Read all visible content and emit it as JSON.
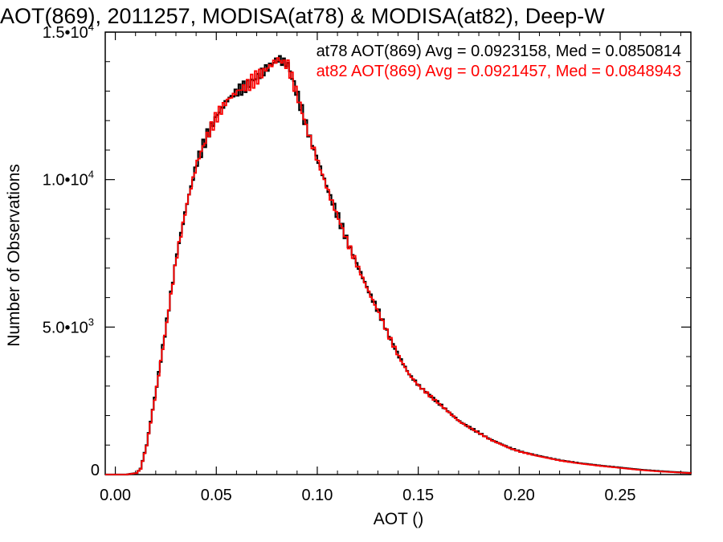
{
  "chart_data": {
    "type": "line",
    "step": true,
    "title": "AOT(869), 2011257, MODISA(at78) & MODISA(at82), Deep-W",
    "xlabel": "AOT ()",
    "ylabel": "Number of Observations",
    "xlim": [
      -0.005,
      0.285
    ],
    "ylim": [
      0,
      15000
    ],
    "x_ticks": [
      {
        "value": 0.0,
        "label": "0.00"
      },
      {
        "value": 0.05,
        "label": "0.05"
      },
      {
        "value": 0.1,
        "label": "0.10"
      },
      {
        "value": 0.15,
        "label": "0.15"
      },
      {
        "value": 0.2,
        "label": "0.20"
      },
      {
        "value": 0.25,
        "label": "0.25"
      }
    ],
    "y_ticks": [
      {
        "value": 0,
        "label": "0",
        "exponent": ""
      },
      {
        "value": 5000,
        "label": "5.0•10",
        "exponent": "3"
      },
      {
        "value": 10000,
        "label": "1.0•10",
        "exponent": "4"
      },
      {
        "value": 15000,
        "label": "1.5•10",
        "exponent": "4"
      }
    ],
    "grid": false,
    "legend_position": "top-right",
    "x": [
      0.0,
      0.005,
      0.01,
      0.012,
      0.015,
      0.02,
      0.025,
      0.03,
      0.035,
      0.04,
      0.045,
      0.05,
      0.055,
      0.06,
      0.065,
      0.07,
      0.075,
      0.08,
      0.085,
      0.09,
      0.095,
      0.1,
      0.105,
      0.11,
      0.115,
      0.12,
      0.125,
      0.13,
      0.135,
      0.14,
      0.145,
      0.15,
      0.155,
      0.16,
      0.165,
      0.17,
      0.175,
      0.18,
      0.185,
      0.19,
      0.195,
      0.2,
      0.21,
      0.22,
      0.23,
      0.24,
      0.25,
      0.26,
      0.27,
      0.28,
      0.285
    ],
    "series": [
      {
        "name": "at78",
        "color": "#000000",
        "legend": "at78 AOT(869) Avg = 0.0923158, Med = 0.0850814",
        "values": [
          0,
          0,
          50,
          200,
          1000,
          3000,
          5200,
          7500,
          9200,
          10600,
          11500,
          12200,
          12700,
          13000,
          13200,
          13500,
          13800,
          14100,
          13900,
          12800,
          11600,
          10600,
          9600,
          8700,
          7800,
          7000,
          6200,
          5500,
          4700,
          4000,
          3400,
          3000,
          2700,
          2400,
          2100,
          1800,
          1600,
          1400,
          1200,
          1050,
          900,
          780,
          620,
          480,
          380,
          300,
          230,
          160,
          110,
          70,
          50
        ]
      },
      {
        "name": "at82",
        "color": "#ff0000",
        "legend": "at82 AOT(869) Avg = 0.0921457, Med = 0.0848943",
        "values": [
          0,
          0,
          50,
          190,
          980,
          2950,
          5150,
          7450,
          9180,
          10580,
          11480,
          12180,
          12690,
          12990,
          13200,
          13480,
          13790,
          14080,
          13870,
          12760,
          11580,
          10570,
          9580,
          8680,
          7780,
          6980,
          6190,
          5480,
          4690,
          3990,
          3390,
          2990,
          2690,
          2390,
          2090,
          1790,
          1590,
          1390,
          1190,
          1040,
          890,
          770,
          610,
          470,
          370,
          290,
          220,
          150,
          100,
          65,
          45
        ]
      }
    ]
  }
}
